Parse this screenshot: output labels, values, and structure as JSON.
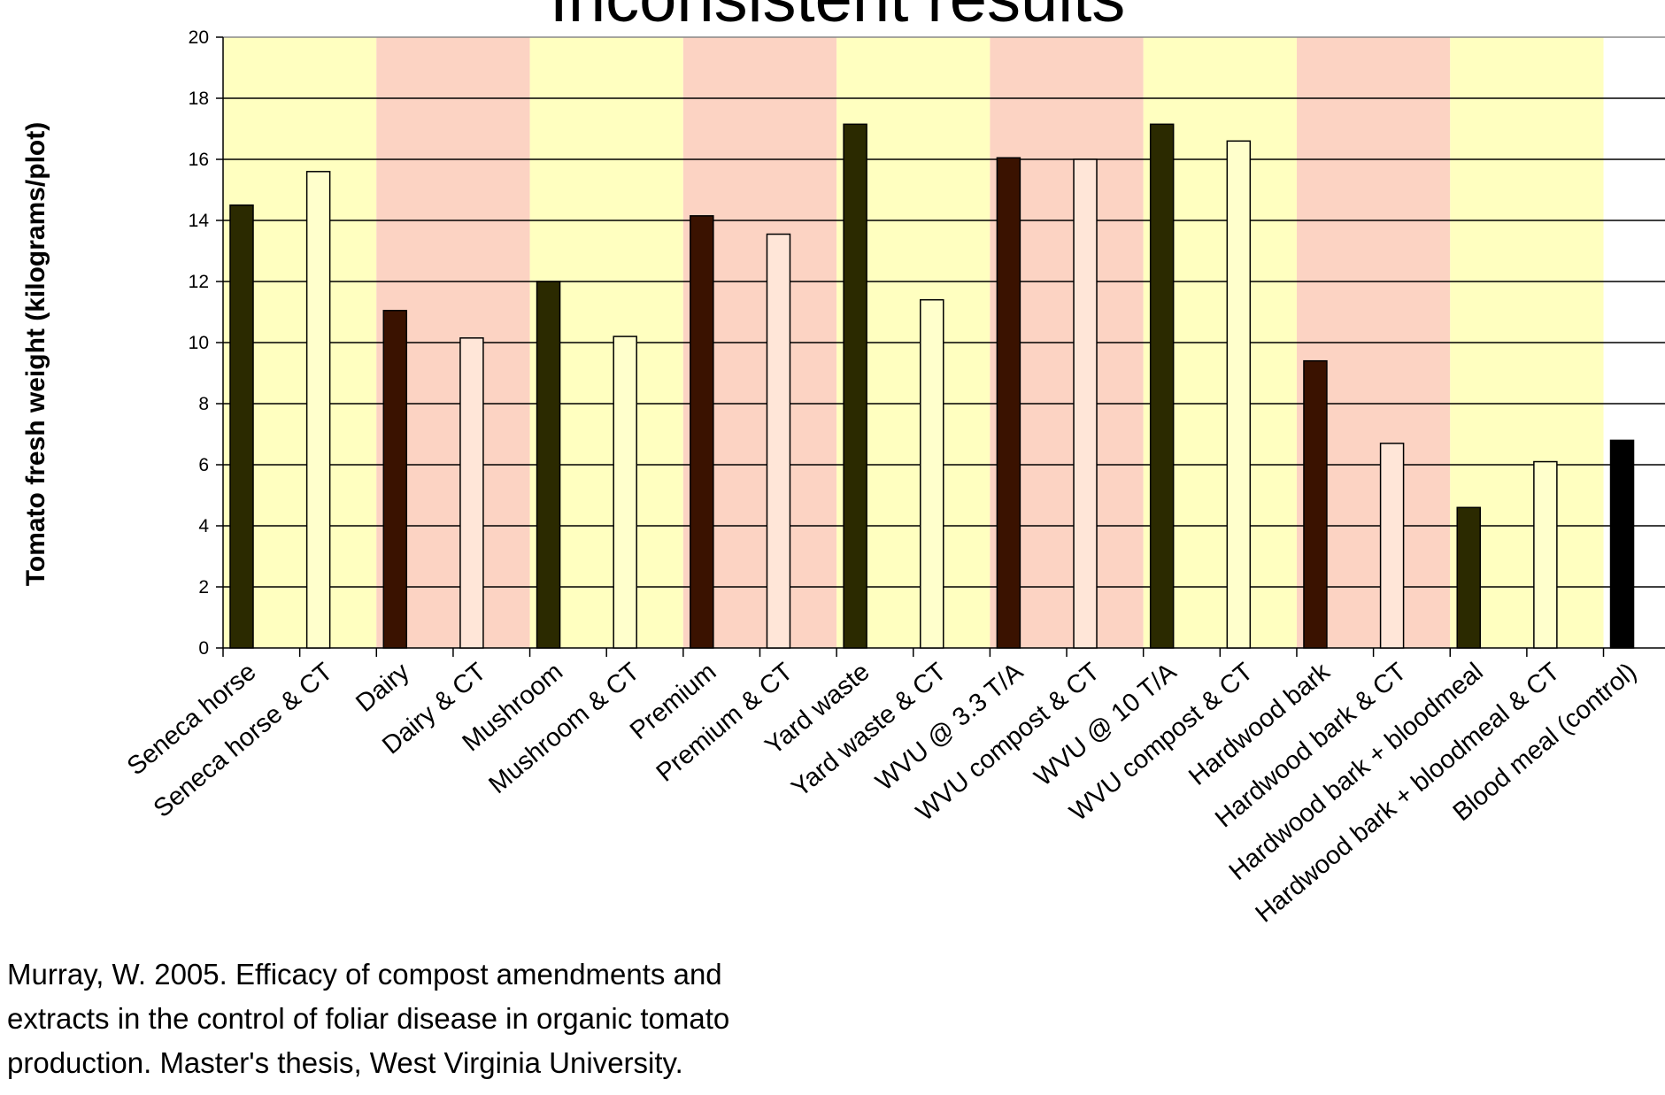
{
  "chart_data": {
    "type": "bar",
    "title": "Inconsistent results",
    "ylabel": "Tomato fresh weight (kilograms/plot)",
    "categories": [
      "Seneca horse",
      "Seneca horse & CT",
      "Dairy",
      "Dairy & CT",
      "Mushroom",
      "Mushroom & CT",
      "Premium",
      "Premium & CT",
      "Yard waste",
      "Yard waste & CT",
      "WVU @ 3.3 T/A",
      "WVU compost & CT",
      "WVU @ 10 T/A",
      "WVU compost & CT",
      "Hardwood bark",
      "Hardwood bark & CT",
      "Hardwood bark + bloodmeal",
      "Hardwood bark + bloodmeal & CT",
      "Blood meal (control)"
    ],
    "values": [
      14.5,
      15.6,
      11.05,
      10.15,
      12.0,
      10.2,
      14.15,
      13.55,
      17.15,
      11.4,
      16.05,
      16.0,
      17.15,
      16.6,
      9.4,
      6.7,
      4.6,
      6.1,
      6.8
    ],
    "colors": [
      "#2b2a00",
      "#ffffcc",
      "#3a1200",
      "#ffe6d8",
      "#2b2a00",
      "#ffffcc",
      "#3a1200",
      "#ffe6d8",
      "#2b2a00",
      "#ffffcc",
      "#3a1200",
      "#ffe6d8",
      "#2b2a00",
      "#ffffcc",
      "#3a1200",
      "#ffe6d8",
      "#2b2a00",
      "#ffffcc",
      "#000000"
    ],
    "band_colors": [
      "#ffffc0",
      "#fcd3c3"
    ],
    "ylim": [
      0,
      20
    ],
    "yticks": [
      0,
      2,
      4,
      6,
      8,
      10,
      12,
      14,
      16,
      18,
      20
    ],
    "grid": true,
    "note": [
      "Murray, W. 2005. Efficacy of compost amendments and",
      "extracts in the control of foliar disease in organic tomato",
      "production. Master's thesis, West Virginia University."
    ]
  }
}
